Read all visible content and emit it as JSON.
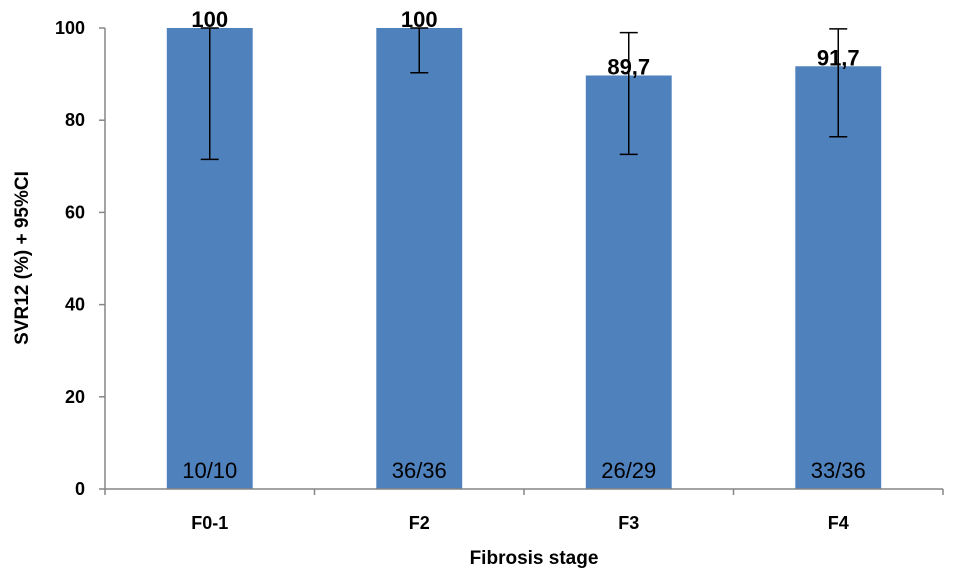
{
  "chart_data": {
    "type": "bar",
    "title": "",
    "xlabel": "Fibrosis stage",
    "ylabel": "SVR12 (%) + 95%CI",
    "categories": [
      "F0-1",
      "F2",
      "F3",
      "F4"
    ],
    "values": [
      100,
      100,
      89.7,
      91.7
    ],
    "value_labels": [
      "100",
      "100",
      "89,7",
      "91,7"
    ],
    "counts": [
      "10/10",
      "36/36",
      "26/29",
      "33/36"
    ],
    "ci_lower": [
      71.5,
      90.3,
      72.6,
      76.4
    ],
    "ci_upper": [
      100,
      100,
      99.0,
      99.8
    ],
    "ylim": [
      0,
      100
    ],
    "yticks": [
      0,
      20,
      40,
      60,
      80,
      100
    ],
    "grid": false,
    "legend": "none",
    "bar_color": "#4F81BD",
    "error_bar_color": "#000000"
  }
}
